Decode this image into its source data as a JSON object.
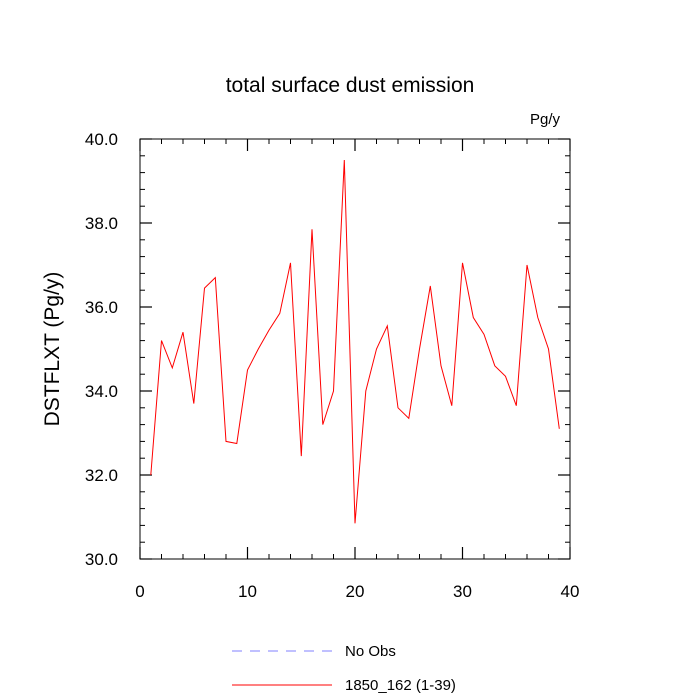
{
  "chart_data": {
    "type": "line",
    "title": "total surface dust emission",
    "units_label": "Pg/y",
    "xlabel": "",
    "ylabel": "DSTFLXT  (Pg/y)",
    "xlim": [
      0,
      40
    ],
    "ylim": [
      30.0,
      40.0
    ],
    "x_ticks": [
      0,
      10,
      20,
      30,
      40
    ],
    "x_tick_labels": [
      "0",
      "10",
      "20",
      "30",
      "40"
    ],
    "y_ticks": [
      30.0,
      32.0,
      34.0,
      36.0,
      38.0,
      40.0
    ],
    "y_tick_labels": [
      "30.0",
      "32.0",
      "34.0",
      "36.0",
      "38.0",
      "40.0"
    ],
    "grid": false,
    "legend_position": "bottom",
    "series": [
      {
        "name": "1850_162 (1-39)",
        "color": "#ff0000",
        "line_style": "solid",
        "x": [
          1,
          2,
          3,
          4,
          5,
          6,
          7,
          8,
          9,
          10,
          11,
          12,
          13,
          14,
          15,
          16,
          17,
          18,
          19,
          20,
          21,
          22,
          23,
          24,
          25,
          26,
          27,
          28,
          29,
          30,
          31,
          32,
          33,
          34,
          35,
          36,
          37,
          38,
          39
        ],
        "y": [
          32.0,
          35.2,
          34.55,
          35.4,
          33.7,
          36.45,
          36.7,
          32.8,
          32.75,
          34.5,
          35.0,
          35.45,
          35.85,
          37.05,
          32.45,
          37.85,
          33.2,
          34.0,
          39.5,
          30.85,
          34.0,
          35.0,
          35.55,
          33.6,
          33.35,
          35.0,
          36.5,
          34.6,
          33.65,
          37.05,
          35.75,
          35.35,
          34.6,
          34.35,
          33.65,
          37.0,
          35.75,
          35.0,
          33.1
        ]
      }
    ],
    "legend": [
      {
        "label": "No Obs",
        "color": "#8080ff",
        "line_style": "dashed"
      },
      {
        "label": "1850_162 (1-39)",
        "color": "#ff0000",
        "line_style": "solid"
      }
    ]
  }
}
